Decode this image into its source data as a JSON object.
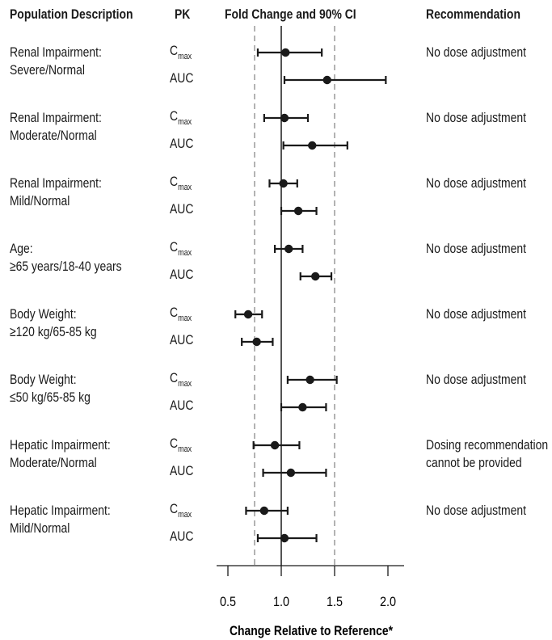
{
  "headers": {
    "population": "Population Description",
    "pk": "PK",
    "fold": "Fold Change and 90% CI",
    "recommendation": "Recommendation"
  },
  "pk_labels": {
    "cmax_main": "C",
    "cmax_sub": "max",
    "auc": "AUC"
  },
  "rows": [
    {
      "line1": "Renal Impairment:",
      "line2": "Severe/Normal",
      "rec1": "No dose adjustment",
      "rec2": ""
    },
    {
      "line1": "Renal Impairment:",
      "line2": "Moderate/Normal",
      "rec1": "No dose adjustment",
      "rec2": ""
    },
    {
      "line1": "Renal Impairment:",
      "line2": "Mild/Normal",
      "rec1": "No dose adjustment",
      "rec2": ""
    },
    {
      "line1": "Age:",
      "line2": "≥65 years/18-40 years",
      "rec1": "No dose adjustment",
      "rec2": ""
    },
    {
      "line1": "Body Weight:",
      "line2": "≥120 kg/65-85 kg",
      "rec1": "No dose adjustment",
      "rec2": ""
    },
    {
      "line1": "Body Weight:",
      "line2": "≤50 kg/65-85 kg",
      "rec1": "No dose adjustment",
      "rec2": ""
    },
    {
      "line1": "Hepatic Impairment:",
      "line2": "Moderate/Normal",
      "rec1": "Dosing recommendation",
      "rec2": "cannot be provided"
    },
    {
      "line1": "Hepatic Impairment:",
      "line2": "Mild/Normal",
      "rec1": "No dose adjustment",
      "rec2": ""
    }
  ],
  "chart_data": {
    "type": "forest",
    "xlabel": "Change Relative to Reference*",
    "xlim": [
      0.4,
      2.15
    ],
    "xticks": [
      0.5,
      1.0,
      1.5,
      2.0
    ],
    "xtick_labels": [
      "0.5",
      "1.0",
      "1.5",
      "2.0"
    ],
    "reference_line": 1.0,
    "dashed_lines": [
      0.75,
      1.5
    ],
    "points": [
      {
        "group": "Renal Impairment: Severe/Normal",
        "pk": "Cmax",
        "estimate": 1.04,
        "ci": [
          0.78,
          1.38
        ]
      },
      {
        "group": "Renal Impairment: Severe/Normal",
        "pk": "AUC",
        "estimate": 1.43,
        "ci": [
          1.03,
          1.98
        ]
      },
      {
        "group": "Renal Impairment: Moderate/Normal",
        "pk": "Cmax",
        "estimate": 1.03,
        "ci": [
          0.84,
          1.25
        ]
      },
      {
        "group": "Renal Impairment: Moderate/Normal",
        "pk": "AUC",
        "estimate": 1.29,
        "ci": [
          1.02,
          1.62
        ]
      },
      {
        "group": "Renal Impairment: Mild/Normal",
        "pk": "Cmax",
        "estimate": 1.02,
        "ci": [
          0.89,
          1.15
        ]
      },
      {
        "group": "Renal Impairment: Mild/Normal",
        "pk": "AUC",
        "estimate": 1.16,
        "ci": [
          1.0,
          1.33
        ]
      },
      {
        "group": "Age: ≥65 years/18-40 years",
        "pk": "Cmax",
        "estimate": 1.07,
        "ci": [
          0.94,
          1.2
        ]
      },
      {
        "group": "Age: ≥65 years/18-40 years",
        "pk": "AUC",
        "estimate": 1.32,
        "ci": [
          1.18,
          1.47
        ]
      },
      {
        "group": "Body Weight: ≥120 kg/65-85 kg",
        "pk": "Cmax",
        "estimate": 0.69,
        "ci": [
          0.57,
          0.82
        ]
      },
      {
        "group": "Body Weight: ≥120 kg/65-85 kg",
        "pk": "AUC",
        "estimate": 0.77,
        "ci": [
          0.63,
          0.92
        ]
      },
      {
        "group": "Body Weight: ≤50 kg/65-85 kg",
        "pk": "Cmax",
        "estimate": 1.27,
        "ci": [
          1.06,
          1.52
        ]
      },
      {
        "group": "Body Weight: ≤50 kg/65-85 kg",
        "pk": "AUC",
        "estimate": 1.2,
        "ci": [
          1.0,
          1.42
        ]
      },
      {
        "group": "Hepatic Impairment: Moderate/Normal",
        "pk": "Cmax",
        "estimate": 0.94,
        "ci": [
          0.74,
          1.17
        ]
      },
      {
        "group": "Hepatic Impairment: Moderate/Normal",
        "pk": "AUC",
        "estimate": 1.09,
        "ci": [
          0.83,
          1.42
        ]
      },
      {
        "group": "Hepatic Impairment: Mild/Normal",
        "pk": "Cmax",
        "estimate": 0.84,
        "ci": [
          0.67,
          1.06
        ]
      },
      {
        "group": "Hepatic Impairment: Mild/Normal",
        "pk": "AUC",
        "estimate": 1.03,
        "ci": [
          0.78,
          1.33
        ]
      }
    ]
  }
}
